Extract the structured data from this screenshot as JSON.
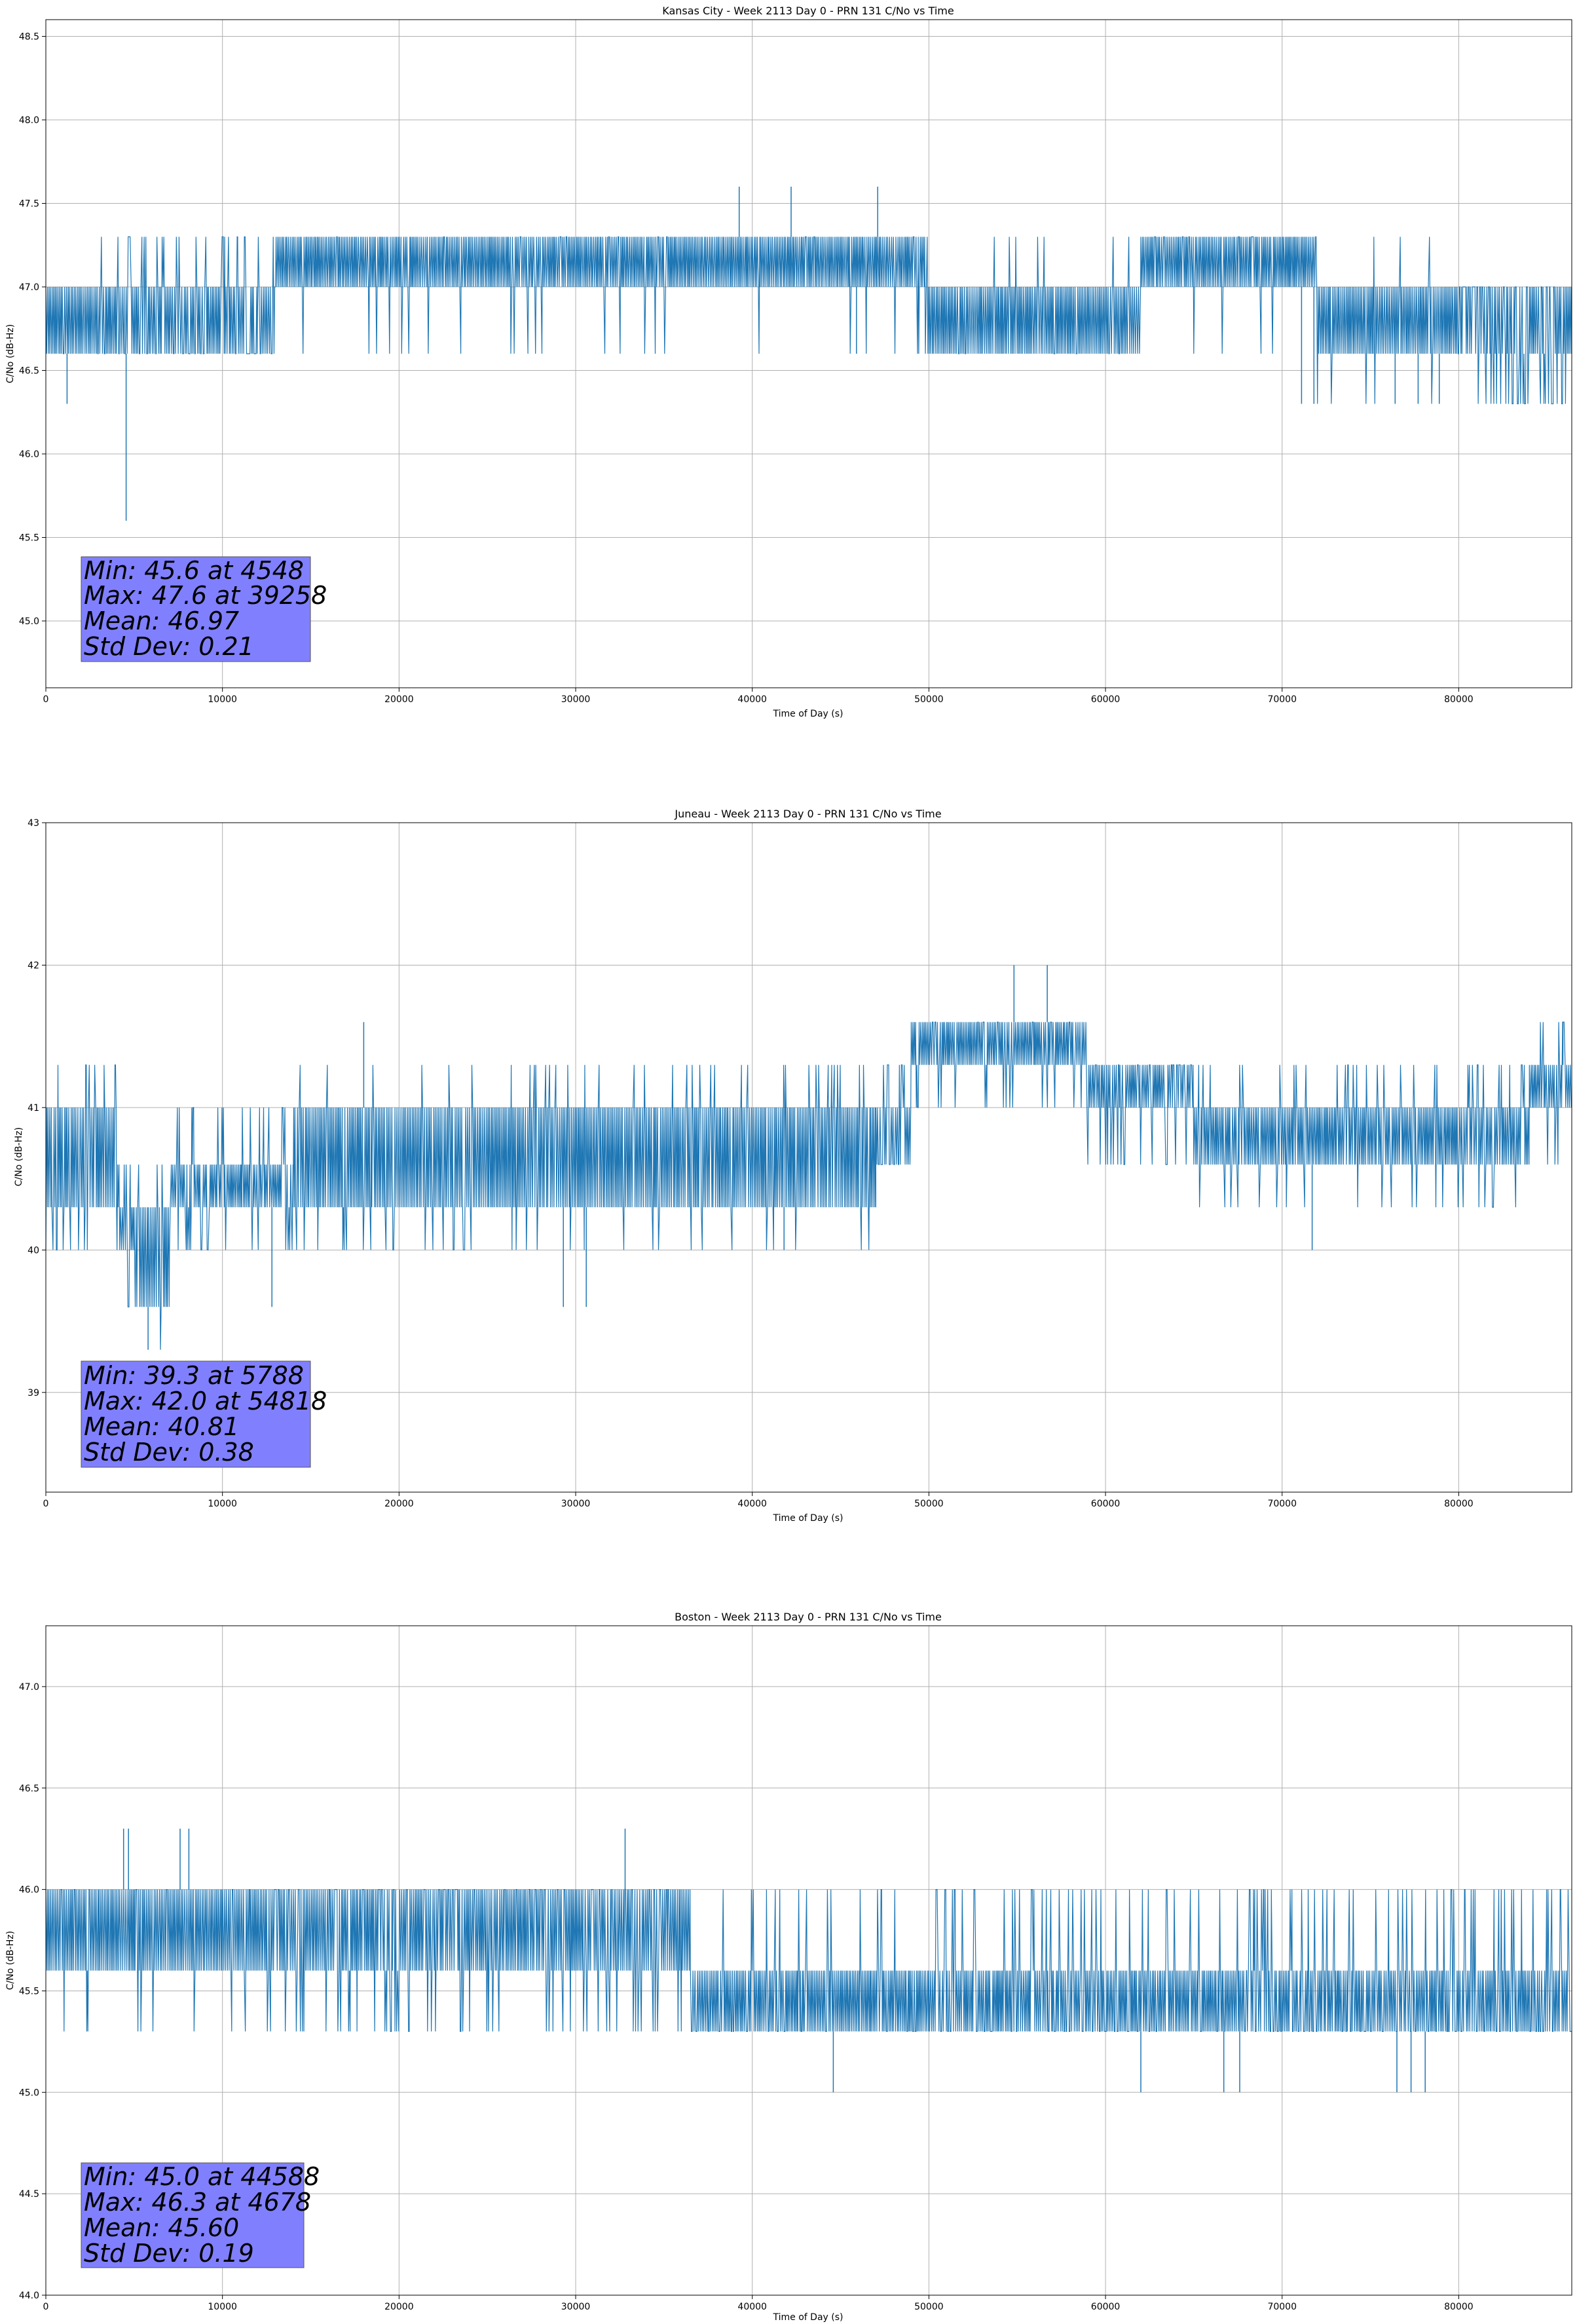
{
  "figure": {
    "background": "#ffffff",
    "line_color": "#1f77b4",
    "stats_box_color": "#8080ff"
  },
  "chart_data": [
    {
      "type": "line",
      "title": "Kansas City - Week 2113 Day 0 - PRN 131 C/No vs Time",
      "xlabel": "Time of Day (s)",
      "ylabel": "C/No (dB-Hz)",
      "xlim": [
        0,
        86400
      ],
      "ylim": [
        44.6,
        48.6
      ],
      "xticks": [
        0,
        10000,
        20000,
        30000,
        40000,
        50000,
        60000,
        70000,
        80000
      ],
      "xtick_labels": [
        "0",
        "10000",
        "20000",
        "30000",
        "40000",
        "50000",
        "60000",
        "70000",
        "80000"
      ],
      "yticks": [
        45.0,
        45.5,
        46.0,
        46.5,
        47.0,
        47.5,
        48.0,
        48.5
      ],
      "ytick_labels": [
        "45.0",
        "45.5",
        "46.0",
        "46.5",
        "47.0",
        "47.5",
        "48.0",
        "48.5"
      ],
      "grid": true,
      "series": [
        {
          "name": "C/No",
          "segments": [
            {
              "x0": 0,
              "x1": 4500,
              "lo": 46.6,
              "hi": 47.0,
              "up": 47.3,
              "dn": 46.6,
              "p": 0.05
            },
            {
              "x0": 4500,
              "x1": 13000,
              "lo": 46.6,
              "hi": 47.0,
              "up": 47.3,
              "dn": 46.6,
              "p": 0.25
            },
            {
              "x0": 13000,
              "x1": 49800,
              "lo": 47.0,
              "hi": 47.3,
              "up": 47.3,
              "dn": 46.6,
              "p": 0.04
            },
            {
              "x0": 49800,
              "x1": 62000,
              "lo": 46.6,
              "hi": 47.0,
              "up": 47.3,
              "dn": 46.6,
              "p": 0.03
            },
            {
              "x0": 62000,
              "x1": 72000,
              "lo": 47.0,
              "hi": 47.3,
              "up": 47.3,
              "dn": 46.6,
              "p": 0.08
            },
            {
              "x0": 72000,
              "x1": 80000,
              "lo": 46.6,
              "hi": 47.0,
              "up": 47.3,
              "dn": 46.3,
              "p": 0.04
            },
            {
              "x0": 80000,
              "x1": 86400,
              "lo": 46.6,
              "hi": 47.0,
              "up": 47.0,
              "dn": 46.3,
              "p": 0.3
            }
          ],
          "spikes": [
            {
              "x": 1200,
              "y": 46.3
            },
            {
              "x": 4548,
              "y": 45.6
            },
            {
              "x": 39258,
              "y": 47.6
            },
            {
              "x": 42200,
              "y": 47.6
            },
            {
              "x": 47100,
              "y": 47.6
            },
            {
              "x": 45900,
              "y": 46.6
            },
            {
              "x": 71100,
              "y": 46.3
            },
            {
              "x": 71800,
              "y": 46.3
            },
            {
              "x": 76400,
              "y": 46.3
            },
            {
              "x": 77700,
              "y": 46.3
            },
            {
              "x": 78900,
              "y": 46.3
            }
          ]
        }
      ],
      "stats": [
        "Min: 45.6 at 4548",
        "Max: 47.6 at 39258",
        "Mean: 46.97",
        "Std Dev: 0.21"
      ]
    },
    {
      "type": "line",
      "title": "Juneau - Week 2113 Day 0 - PRN 131 C/No vs Time",
      "xlabel": "Time of Day (s)",
      "ylabel": "C/No (dB-Hz)",
      "xlim": [
        0,
        86400
      ],
      "ylim": [
        38.3,
        43.0
      ],
      "xticks": [
        0,
        10000,
        20000,
        30000,
        40000,
        50000,
        60000,
        70000,
        80000
      ],
      "xtick_labels": [
        "0",
        "10000",
        "20000",
        "30000",
        "40000",
        "50000",
        "60000",
        "70000",
        "80000"
      ],
      "yticks": [
        39,
        40,
        41,
        42,
        43
      ],
      "ytick_labels": [
        "39",
        "40",
        "41",
        "42",
        "43"
      ],
      "grid": true,
      "series": [
        {
          "name": "C/No",
          "segments": [
            {
              "x0": 0,
              "x1": 4000,
              "lo": 40.3,
              "hi": 41.0,
              "up": 41.3,
              "dn": 40.0,
              "p": 0.15
            },
            {
              "x0": 4000,
              "x1": 5000,
              "lo": 40.0,
              "hi": 40.3,
              "up": 40.6,
              "dn": 39.6,
              "p": 0.2
            },
            {
              "x0": 5000,
              "x1": 7000,
              "lo": 39.6,
              "hi": 40.3,
              "up": 40.6,
              "dn": 39.3,
              "p": 0.2
            },
            {
              "x0": 7000,
              "x1": 14000,
              "lo": 40.3,
              "hi": 40.6,
              "up": 41.0,
              "dn": 40.0,
              "p": 0.2
            },
            {
              "x0": 14000,
              "x1": 47000,
              "lo": 40.3,
              "hi": 41.0,
              "up": 41.3,
              "dn": 40.0,
              "p": 0.1
            },
            {
              "x0": 47000,
              "x1": 49000,
              "lo": 40.6,
              "hi": 41.0,
              "up": 41.3,
              "dn": 40.6,
              "p": 0.2
            },
            {
              "x0": 49000,
              "x1": 59000,
              "lo": 41.3,
              "hi": 41.6,
              "up": 41.6,
              "dn": 41.0,
              "p": 0.15
            },
            {
              "x0": 59000,
              "x1": 65000,
              "lo": 41.0,
              "hi": 41.3,
              "up": 41.3,
              "dn": 40.6,
              "p": 0.15
            },
            {
              "x0": 65000,
              "x1": 84000,
              "lo": 40.6,
              "hi": 41.0,
              "up": 41.3,
              "dn": 40.3,
              "p": 0.1
            },
            {
              "x0": 84000,
              "x1": 86400,
              "lo": 41.0,
              "hi": 41.3,
              "up": 41.6,
              "dn": 40.6,
              "p": 0.2
            }
          ],
          "spikes": [
            {
              "x": 5788,
              "y": 39.3
            },
            {
              "x": 54818,
              "y": 42.0
            },
            {
              "x": 56700,
              "y": 42.0
            },
            {
              "x": 18000,
              "y": 41.6
            },
            {
              "x": 29300,
              "y": 39.6
            },
            {
              "x": 30600,
              "y": 39.6
            },
            {
              "x": 12800,
              "y": 39.6
            },
            {
              "x": 71700,
              "y": 40.0
            },
            {
              "x": 41800,
              "y": 40.0
            },
            {
              "x": 85900,
              "y": 41.6
            }
          ]
        }
      ],
      "stats": [
        "Min: 39.3 at 5788",
        "Max: 42.0 at 54818",
        "Mean: 40.81",
        "Std Dev: 0.38"
      ]
    },
    {
      "type": "line",
      "title": "Boston - Week 2113 Day 0 - PRN 131 C/No vs Time",
      "xlabel": "Time of Day (s)",
      "ylabel": "C/No (dB-Hz)",
      "xlim": [
        0,
        86400
      ],
      "ylim": [
        44.0,
        47.3
      ],
      "xticks": [
        0,
        10000,
        20000,
        30000,
        40000,
        50000,
        60000,
        70000,
        80000
      ],
      "xtick_labels": [
        "0",
        "10000",
        "20000",
        "30000",
        "40000",
        "50000",
        "60000",
        "70000",
        "80000"
      ],
      "yticks": [
        44.0,
        44.5,
        45.0,
        45.5,
        46.0,
        46.5,
        47.0
      ],
      "ytick_labels": [
        "44.0",
        "44.5",
        "45.0",
        "45.5",
        "46.0",
        "46.5",
        "47.0"
      ],
      "grid": true,
      "series": [
        {
          "name": "C/No",
          "segments": [
            {
              "x0": 0,
              "x1": 12500,
              "lo": 45.6,
              "hi": 46.0,
              "up": 46.0,
              "dn": 45.3,
              "p": 0.06
            },
            {
              "x0": 12500,
              "x1": 36500,
              "lo": 45.6,
              "hi": 46.0,
              "up": 46.0,
              "dn": 45.3,
              "p": 0.2
            },
            {
              "x0": 36500,
              "x1": 50000,
              "lo": 45.3,
              "hi": 45.6,
              "up": 46.0,
              "dn": 45.3,
              "p": 0.12
            },
            {
              "x0": 50000,
              "x1": 68000,
              "lo": 45.3,
              "hi": 45.6,
              "up": 46.0,
              "dn": 45.3,
              "p": 0.2
            },
            {
              "x0": 68000,
              "x1": 86400,
              "lo": 45.3,
              "hi": 45.6,
              "up": 46.0,
              "dn": 45.3,
              "p": 0.25
            }
          ],
          "spikes": [
            {
              "x": 4678,
              "y": 46.3
            },
            {
              "x": 4400,
              "y": 46.3
            },
            {
              "x": 7600,
              "y": 46.3
            },
            {
              "x": 8100,
              "y": 46.3
            },
            {
              "x": 32800,
              "y": 46.3
            },
            {
              "x": 44588,
              "y": 45.0
            },
            {
              "x": 66700,
              "y": 45.0
            },
            {
              "x": 67600,
              "y": 45.0
            },
            {
              "x": 76500,
              "y": 45.0
            },
            {
              "x": 77300,
              "y": 45.0
            },
            {
              "x": 78100,
              "y": 45.0
            },
            {
              "x": 62000,
              "y": 45.0
            }
          ]
        }
      ],
      "stats": [
        "Min: 45.0 at 44588",
        "Max: 46.3 at 4678",
        "Mean: 45.60",
        "Std Dev: 0.19"
      ]
    }
  ]
}
